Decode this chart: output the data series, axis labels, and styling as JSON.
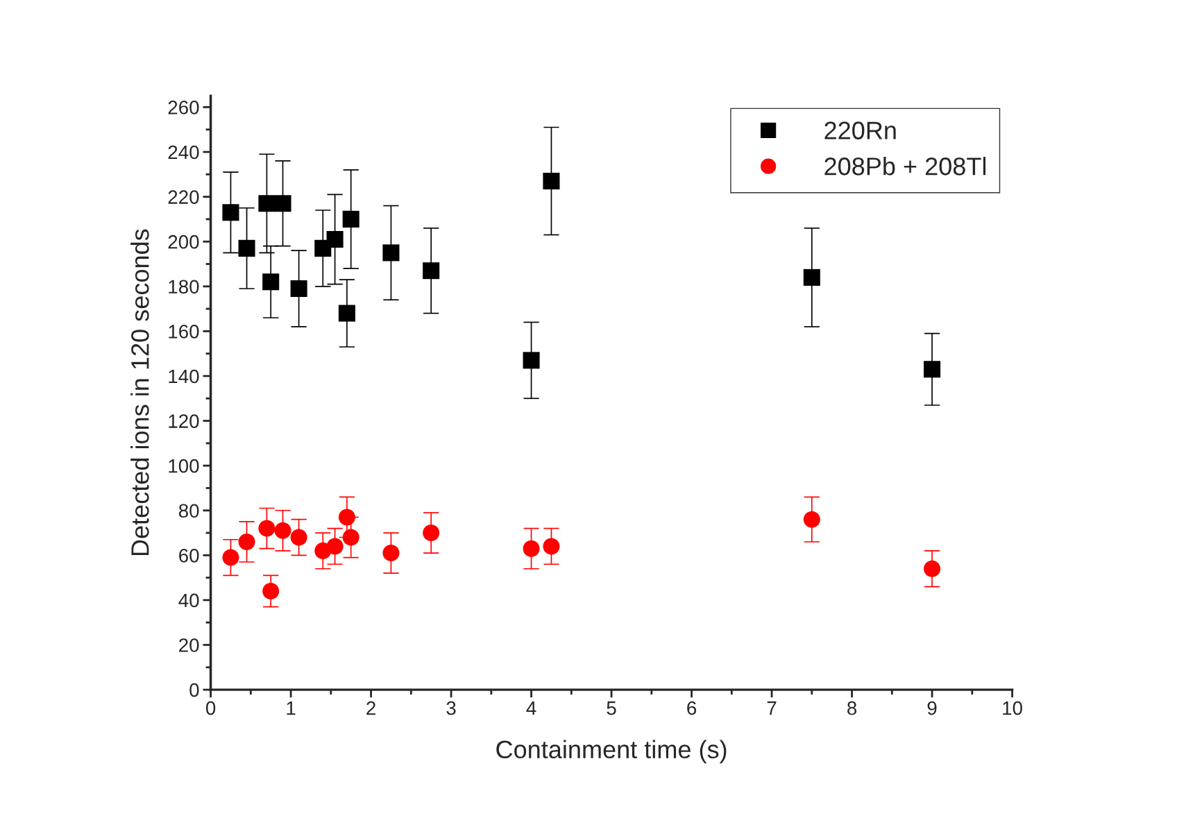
{
  "chart_data": {
    "type": "scatter",
    "xlabel": "Containment time (s)",
    "ylabel": "Detected ions in 120 seconds",
    "x": [
      0.25,
      0.45,
      0.7,
      0.75,
      0.9,
      1.1,
      1.4,
      1.55,
      1.7,
      1.75,
      2.25,
      2.75,
      4.0,
      4.25,
      7.5,
      9.0
    ],
    "series": [
      {
        "name": "220Rn",
        "color": "#000000",
        "marker": "square",
        "values": [
          213,
          197,
          217,
          182,
          217,
          179,
          197,
          201,
          168,
          210,
          195,
          187,
          147,
          227,
          184,
          143
        ],
        "errors": [
          18,
          18,
          22,
          16,
          19,
          17,
          17,
          20,
          15,
          22,
          21,
          19,
          17,
          24,
          22,
          16
        ]
      },
      {
        "name": "208Pb + 208Tl",
        "color": "#ff0000",
        "marker": "circle",
        "values": [
          59,
          66,
          72,
          44,
          71,
          68,
          62,
          64,
          77,
          68,
          61,
          70,
          63,
          64,
          76,
          54
        ],
        "errors": [
          8,
          9,
          9,
          7,
          9,
          8,
          8,
          8,
          9,
          9,
          9,
          9,
          9,
          8,
          10,
          8
        ]
      }
    ],
    "xlim": [
      0,
      10
    ],
    "xticks": [
      0,
      1,
      2,
      3,
      4,
      5,
      6,
      7,
      8,
      9,
      10
    ],
    "ylim": [
      0,
      265
    ],
    "yticks": [
      0,
      20,
      40,
      60,
      80,
      100,
      120,
      140,
      160,
      180,
      200,
      220,
      240,
      260
    ],
    "grid": false,
    "legend": "top right"
  }
}
